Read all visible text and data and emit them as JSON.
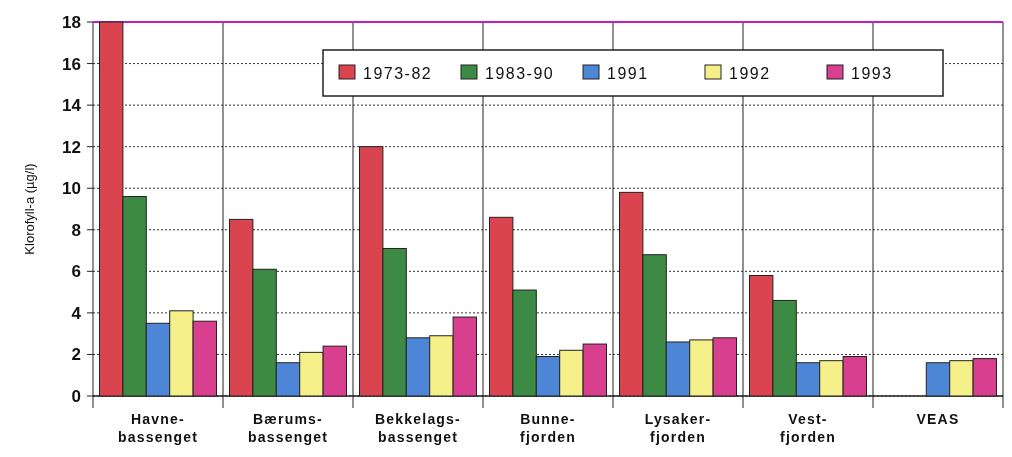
{
  "chart_data": {
    "type": "bar",
    "ylabel": "Klorofyll-a (µg/l)",
    "categories": [
      "Havne-\nbassenget",
      "Bærums-\nbassenget",
      "Bekkelags-\nbassenget",
      "Bunne-\nfjorden",
      "Lysaker-\nfjorden",
      "Vest-\nfjorden",
      "VEAS"
    ],
    "series": [
      {
        "name": "1973-82",
        "color": "#d9444f",
        "values": [
          18,
          8.5,
          12.0,
          8.6,
          9.8,
          5.8,
          null
        ]
      },
      {
        "name": "1983-90",
        "color": "#3d8a45",
        "values": [
          9.6,
          6.1,
          7.1,
          5.1,
          6.8,
          4.6,
          null
        ]
      },
      {
        "name": "1991",
        "color": "#4d86d6",
        "values": [
          3.5,
          1.6,
          2.8,
          1.9,
          2.6,
          1.6,
          1.6
        ]
      },
      {
        "name": "1992",
        "color": "#f5f08a",
        "values": [
          4.1,
          2.1,
          2.9,
          2.2,
          2.7,
          1.7,
          1.7
        ]
      },
      {
        "name": "1993",
        "color": "#d8408f",
        "values": [
          3.6,
          2.4,
          3.8,
          2.5,
          2.8,
          1.9,
          1.8
        ]
      }
    ],
    "ylim": [
      0,
      18
    ],
    "yticks": [
      0,
      2,
      4,
      6,
      8,
      10,
      12,
      14,
      16,
      18
    ],
    "grid": "y",
    "legend": "top right"
  }
}
